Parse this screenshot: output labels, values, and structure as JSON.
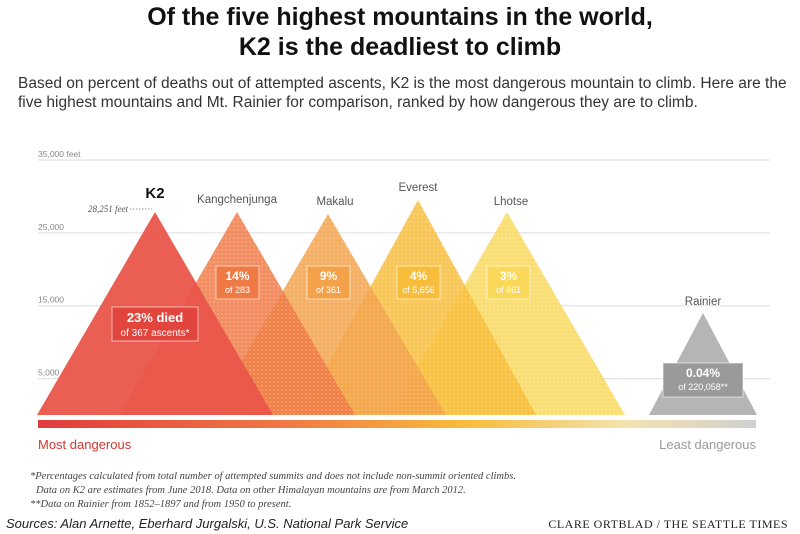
{
  "title_line1": "Of the five highest mountains in the world,",
  "title_line2": "K2 is the deadliest to climb",
  "subtitle": "Based on percent of deaths out of attempted ascents, K2 is the most dangerous mountain to climb. Here are the five highest mountains and Mt. Rainier for comparison, ranked by how dangerous they are to climb.",
  "chart_data": {
    "type": "area",
    "y_axis_ticks": [
      "35,000 feet",
      "25,000",
      "15,000",
      "5,000"
    ],
    "y_tick_values": [
      35000,
      25000,
      15000,
      5000
    ],
    "ylim": [
      0,
      35000
    ],
    "grid": true,
    "elevation_annotation": "28,251 feet",
    "elevation_value": 28251,
    "mountains": [
      {
        "name": "K2",
        "death_rate": 23,
        "stat_line1": "23% died",
        "stat_line2": "of 367 ascents*",
        "color": "#e9554a"
      },
      {
        "name": "Kangchenjunga",
        "death_rate": 14,
        "stat_line1": "14%",
        "stat_line2": "of 283",
        "color": "#f07a45"
      },
      {
        "name": "Makalu",
        "death_rate": 9,
        "stat_line1": "9%",
        "stat_line2": "of 361",
        "color": "#f3a24a"
      },
      {
        "name": "Everest",
        "death_rate": 4,
        "stat_line1": "4%",
        "stat_line2": "of 5,656",
        "color": "#f8bd3b"
      },
      {
        "name": "Lhotse",
        "death_rate": 3,
        "stat_line1": "3%",
        "stat_line2": "of 461",
        "color": "#f9d85a"
      },
      {
        "name": "Rainier",
        "death_rate": 0.04,
        "stat_line1": "0.04%",
        "stat_line2": "of 220,058**",
        "color": "#a8a8a8"
      }
    ],
    "scale_left_label": "Most dangerous",
    "scale_right_label": "Least dangerous"
  },
  "colors": {
    "scale_left": "#e03c3c",
    "scale_right": "#cfcfcf",
    "dangerous_text": "#d4372f"
  },
  "notes": [
    "*Percentages calculated from total number of attempted summits and does not include non-summit oriented climbs.",
    "Data on K2 are estimates from June 2018. Data on other Himalayan mountains are from March 2012.",
    "**Data on Rainier from 1852–1897 and from 1950 to present."
  ],
  "sources": "Sources: Alan Arnette, Eberhard Jurgalski, U.S. National Park Service",
  "credit": "CLARE ORTBLAD / THE SEATTLE TIMES"
}
